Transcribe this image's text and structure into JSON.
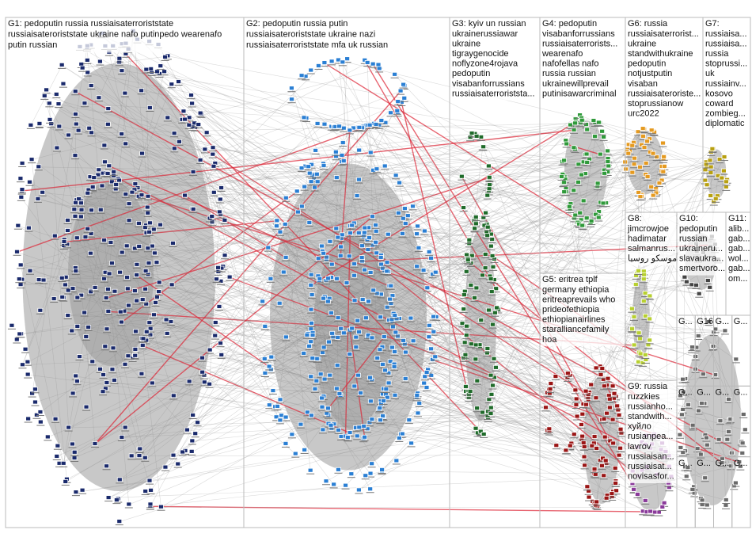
{
  "groups": [
    {
      "label_lines": [
        "G1: pedoputin russia russiaisaterroriststate",
        "russiaisateroriststate ukraine nafo putinpedo wearenafo",
        "putin russian"
      ]
    },
    {
      "label_lines": [
        "G2: pedoputin russia putin",
        "russiaisateroriststate ukraine nazi",
        "russiaisaterroriststate mfa uk russian"
      ]
    },
    {
      "label_lines": [
        "G3: kyiv un russian",
        "ukrainerussiawar",
        "ukraine",
        "tigraygenocide",
        "noflyzone4rojava",
        "pedoputin",
        "visabanforrussians",
        "russiaisaterroriststa..."
      ]
    },
    {
      "label_lines": [
        "G4: pedoputin",
        "visabanforrussians",
        "russiaisaterrorists...",
        "wearenafo",
        "nafofellas nafo",
        "russia russian",
        "ukrainewillprevail",
        "putinisawarcriminal"
      ]
    },
    {
      "label_lines": [
        "G5: eritrea tplf",
        "germany ethiopia",
        "eritreaprevails who",
        "prideofethiopia",
        "ethiopianairlines",
        "staralliancefamily",
        "hoa"
      ]
    },
    {
      "label_lines": [
        "G6: russia",
        "russiaisaterrorist...",
        "ukraine",
        "standwithukraine",
        "pedoputin",
        "notjustputin",
        "visaban",
        "russiaisateroriste...",
        "stoprussianow",
        "urc2022"
      ]
    },
    {
      "label_lines": [
        "G7:",
        "russiaisa...",
        "russiaisa...",
        "russia",
        "stoprussi...",
        "uk",
        "russiainv...",
        "kosovo",
        "coward",
        "zombieg...",
        "diplomatic"
      ]
    },
    {
      "label_lines": [
        "G8:",
        "jimcrowjoe",
        "hadimatar",
        "salmanrus...",
        "موسكو روسيا"
      ]
    },
    {
      "label_lines": [
        "G9: russia",
        "ruzzkies",
        "russianho...",
        "standwith...",
        "хуйло",
        "rusianpea...",
        "lavrov",
        "russiaisan...",
        "russiaisat...",
        "novisasfor..."
      ]
    },
    {
      "label_lines": [
        "G10:",
        "pedoputin",
        "russian",
        "ukraineru...",
        "slavaukra...",
        "smertvoro..."
      ]
    },
    {
      "label_lines": [
        "G11:",
        "alib...",
        "gab...",
        "gab...",
        "wol...",
        "gab...",
        "om..."
      ]
    }
  ],
  "small_groups": [
    "G...",
    "G16",
    "G...",
    "G...",
    "G...",
    "G...",
    "G...",
    "G...",
    "G...",
    "G...",
    "G...",
    "G..."
  ]
}
